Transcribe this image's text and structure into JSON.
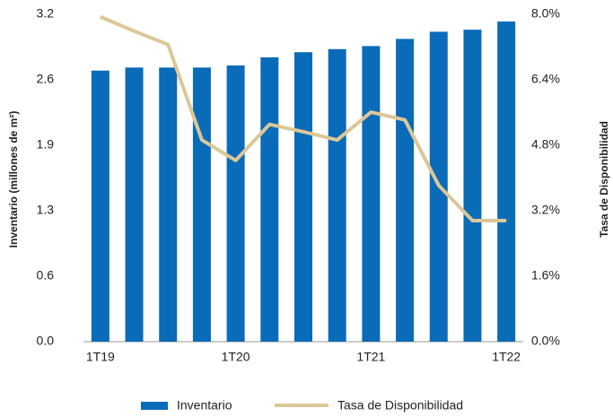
{
  "chart_data": {
    "type": "bar_line",
    "categories": [
      "1T19",
      null,
      null,
      null,
      "1T20",
      null,
      null,
      null,
      "1T21",
      null,
      null,
      null,
      "1T22"
    ],
    "y_label": "Inventario (millones de m²)",
    "y2_label": "Tasa de Disponibilidad",
    "ylim": [
      0,
      3.2
    ],
    "yticks": [
      {
        "value": 0,
        "label": "0.0"
      },
      {
        "value": 0.64,
        "label": "0.6"
      },
      {
        "value": 1.28,
        "label": "1.3"
      },
      {
        "value": 1.92,
        "label": "1.9"
      },
      {
        "value": 2.56,
        "label": "2.6"
      },
      {
        "value": 3.2,
        "label": "3.2"
      }
    ],
    "y2lim": [
      0,
      8
    ],
    "y2ticks": [
      {
        "value": 0,
        "label": "0.0%"
      },
      {
        "value": 1.6,
        "label": "1.6%"
      },
      {
        "value": 3.2,
        "label": "3.2%"
      },
      {
        "value": 4.8,
        "label": "4.8%"
      },
      {
        "value": 6.4,
        "label": "6.4%"
      },
      {
        "value": 8,
        "label": "8.0%"
      }
    ],
    "series": [
      {
        "name": "Inventario",
        "type": "bar",
        "color": "#0a6bb8",
        "values": [
          2.65,
          2.68,
          2.68,
          2.68,
          2.7,
          2.78,
          2.83,
          2.86,
          2.89,
          2.96,
          3.03,
          3.05,
          3.13
        ]
      },
      {
        "name": "Tasa de Disponibilidad",
        "type": "line",
        "axis": "y2",
        "color": "#dcc796",
        "values": [
          7.94,
          7.59,
          7.26,
          4.93,
          4.43,
          5.31,
          5.13,
          4.93,
          5.61,
          5.42,
          3.82,
          2.96,
          2.96
        ]
      }
    ],
    "legend": "bottom"
  }
}
